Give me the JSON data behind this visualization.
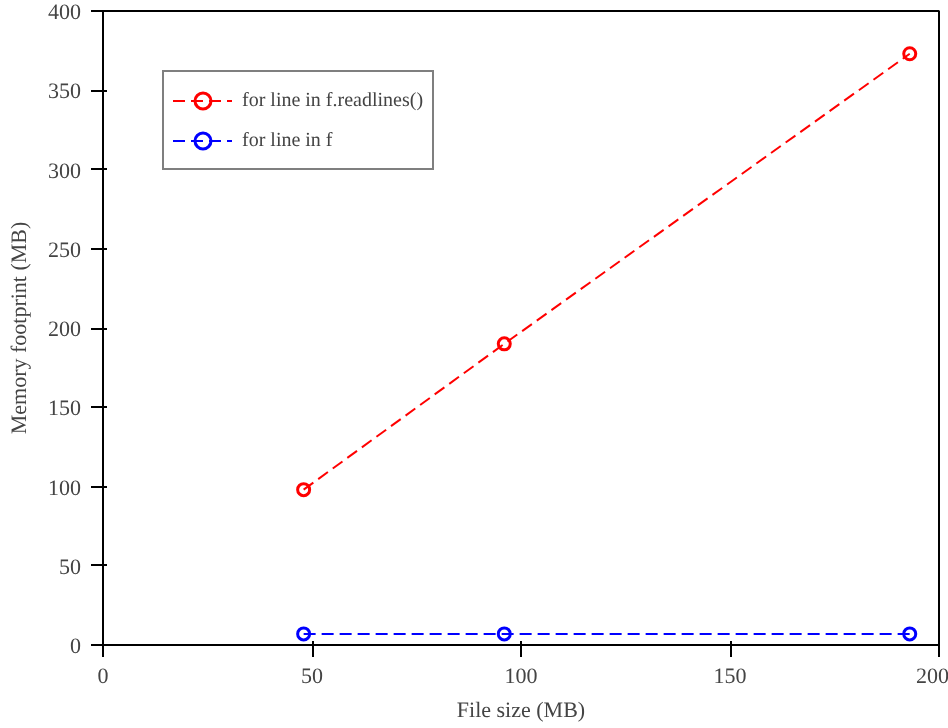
{
  "chart_data": {
    "type": "line",
    "xlabel": "File size (MB)",
    "ylabel": "Memory footprint (MB)",
    "x": [
      48,
      96,
      193
    ],
    "series": [
      {
        "name": "for line in f.readlines()",
        "color": "#ff0000",
        "values": [
          98,
          190,
          373
        ]
      },
      {
        "name": "for line in f",
        "color": "#0000ff",
        "values": [
          7,
          7,
          7
        ]
      }
    ],
    "xlim": [
      0,
      200
    ],
    "xticks": [
      0,
      50,
      100,
      150,
      200
    ],
    "ylim": [
      0,
      400
    ],
    "yticks": [
      0,
      50,
      100,
      150,
      200,
      250,
      300,
      350,
      400
    ],
    "grid": false,
    "legend": "top left",
    "marker": "circle",
    "line_style": "dashed"
  }
}
